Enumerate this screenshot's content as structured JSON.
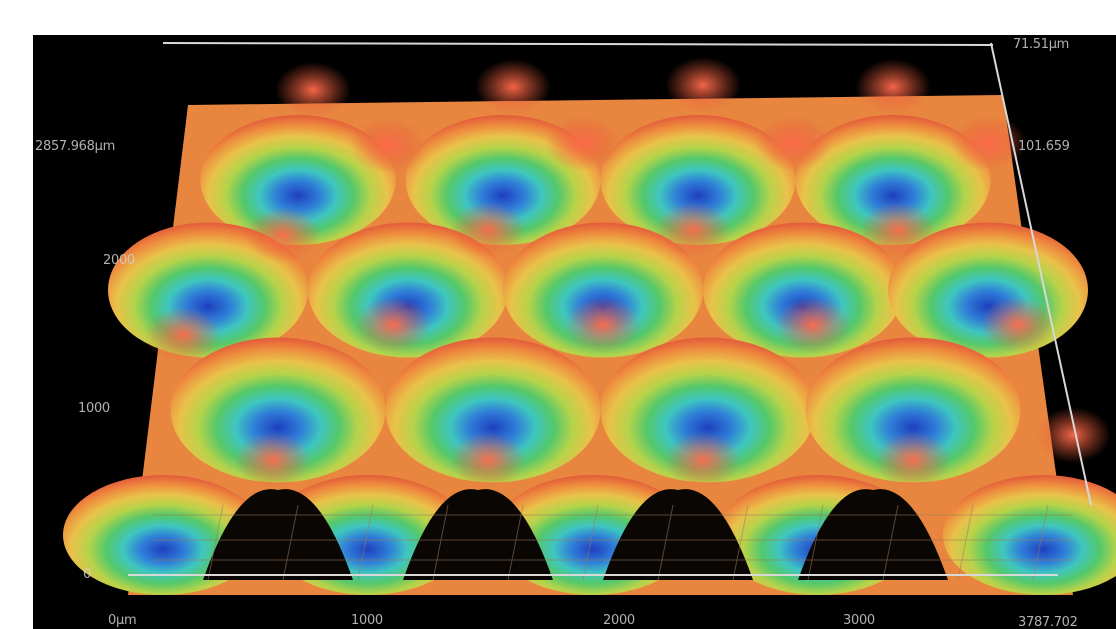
{
  "figure": {
    "description_free": true,
    "y_axis_labels": [
      "2857.968µm",
      "2000",
      "1000",
      "0"
    ],
    "x_axis_labels": [
      "0µm",
      "1000",
      "2000",
      "3000",
      "3787.702"
    ],
    "z_axis_labels": [
      "71.51µm",
      "101.659"
    ],
    "colormap": [
      "#1f3fbf",
      "#2f8fd8",
      "#3fc6c0",
      "#54c86a",
      "#b6d34a",
      "#e9c24a",
      "#ee8a3e",
      "#e25a3a"
    ]
  }
}
